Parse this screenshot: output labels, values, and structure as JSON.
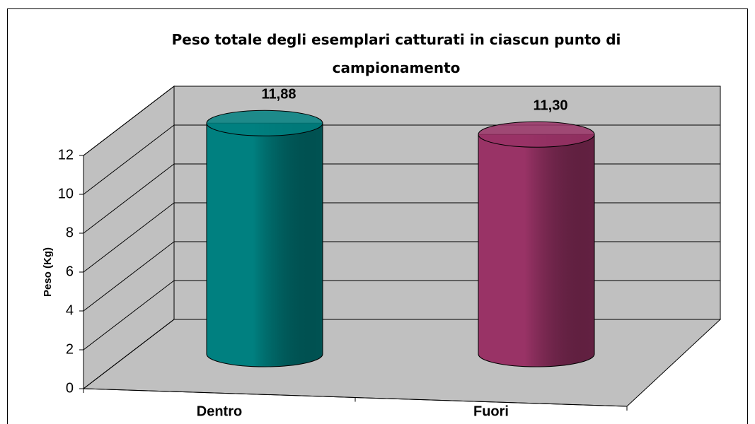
{
  "chart_data": {
    "type": "cylinder",
    "title": "Peso totale degli esemplari catturati in ciascun punto di campionamento",
    "y_label": "Peso (Kg)",
    "categories": [
      "Dentro",
      "Fuori"
    ],
    "values": [
      11.88,
      11.3
    ],
    "value_labels": [
      "11,88",
      "11,30"
    ],
    "colors": [
      "#008080",
      "#993366"
    ],
    "ylim": [
      0,
      12
    ],
    "yticks": [
      0,
      2,
      4,
      6,
      8,
      10,
      12
    ],
    "grid": true
  }
}
